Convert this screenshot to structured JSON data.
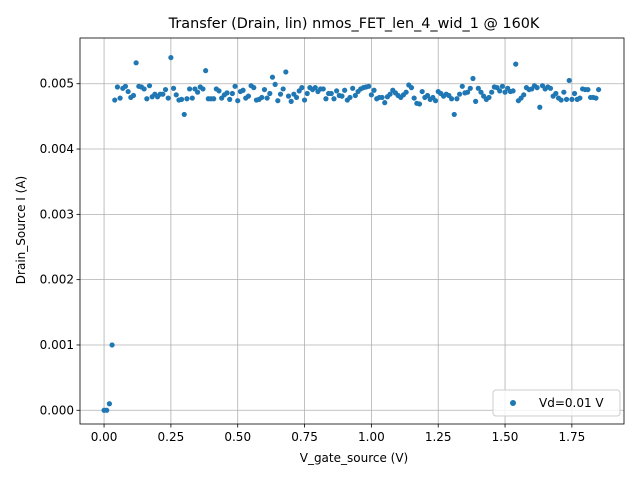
{
  "chart_data": {
    "type": "scatter",
    "title": "Transfer (Drain, lin) nmos_FET_len_4_wid_1 @ 160K",
    "xlabel": "V_gate_source (V)",
    "ylabel": "Drain_Source I (A)",
    "xlim": [
      -0.09,
      1.945
    ],
    "ylim": [
      -0.00021,
      0.0057
    ],
    "x_ticks": [
      0.0,
      0.25,
      0.5,
      0.75,
      1.0,
      1.25,
      1.5,
      1.75
    ],
    "x_tick_labels": [
      "0.00",
      "0.25",
      "0.50",
      "0.75",
      "1.00",
      "1.25",
      "1.50",
      "1.75"
    ],
    "y_ticks": [
      0.0,
      0.001,
      0.002,
      0.003,
      0.004,
      0.005
    ],
    "y_tick_labels": [
      "0.000",
      "0.001",
      "0.002",
      "0.003",
      "0.004",
      "0.005"
    ],
    "grid": true,
    "legend_position": "lower-right",
    "marker_color": "#1f77b4",
    "series": [
      {
        "name": "Vd=0.01 V",
        "x": [
          0.0,
          0.01,
          0.02,
          0.03,
          0.04,
          0.05,
          0.06,
          0.07,
          0.08,
          0.09,
          0.1,
          0.11,
          0.12,
          0.13,
          0.14,
          0.15,
          0.16,
          0.17,
          0.18,
          0.19,
          0.2,
          0.21,
          0.22,
          0.23,
          0.24,
          0.25,
          0.26,
          0.27,
          0.28,
          0.29,
          0.3,
          0.31,
          0.32,
          0.33,
          0.34,
          0.35,
          0.36,
          0.37,
          0.38,
          0.39,
          0.4,
          0.41,
          0.42,
          0.43,
          0.44,
          0.45,
          0.46,
          0.47,
          0.48,
          0.49,
          0.5,
          0.51,
          0.52,
          0.53,
          0.54,
          0.55,
          0.56,
          0.57,
          0.58,
          0.59,
          0.6,
          0.61,
          0.62,
          0.63,
          0.64,
          0.65,
          0.66,
          0.67,
          0.68,
          0.69,
          0.7,
          0.71,
          0.72,
          0.73,
          0.74,
          0.75,
          0.76,
          0.77,
          0.78,
          0.79,
          0.8,
          0.81,
          0.82,
          0.83,
          0.84,
          0.85,
          0.86,
          0.87,
          0.88,
          0.89,
          0.9,
          0.91,
          0.92,
          0.93,
          0.94,
          0.95,
          0.96,
          0.97,
          0.98,
          0.99,
          1.0,
          1.01,
          1.02,
          1.03,
          1.04,
          1.05,
          1.06,
          1.07,
          1.08,
          1.09,
          1.1,
          1.11,
          1.12,
          1.13,
          1.14,
          1.15,
          1.16,
          1.17,
          1.18,
          1.19,
          1.2,
          1.21,
          1.22,
          1.23,
          1.24,
          1.25,
          1.26,
          1.27,
          1.28,
          1.29,
          1.3,
          1.31,
          1.32,
          1.33,
          1.34,
          1.35,
          1.36,
          1.37,
          1.38,
          1.39,
          1.4,
          1.41,
          1.42,
          1.43,
          1.44,
          1.45,
          1.46,
          1.47,
          1.48,
          1.49,
          1.5,
          1.51,
          1.52,
          1.53,
          1.54,
          1.55,
          1.56,
          1.57,
          1.58,
          1.59,
          1.6,
          1.61,
          1.62,
          1.63,
          1.64,
          1.65,
          1.66,
          1.67,
          1.68,
          1.69,
          1.7,
          1.71,
          1.72,
          1.73,
          1.74,
          1.75,
          1.76,
          1.77,
          1.78,
          1.79,
          1.8,
          1.81,
          1.82,
          1.83,
          1.84,
          1.85
        ],
        "y": [
          0.0,
          0.0,
          0.0001,
          0.001,
          0.00475,
          0.00495,
          0.00478,
          0.00493,
          0.00496,
          0.00488,
          0.00479,
          0.00482,
          0.00532,
          0.00496,
          0.00495,
          0.00492,
          0.00477,
          0.00497,
          0.0048,
          0.00484,
          0.0048,
          0.00484,
          0.00484,
          0.00491,
          0.00478,
          0.0054,
          0.00493,
          0.00483,
          0.00475,
          0.00476,
          0.00453,
          0.00477,
          0.00492,
          0.00478,
          0.00492,
          0.00487,
          0.00495,
          0.00492,
          0.0052,
          0.00477,
          0.00477,
          0.00477,
          0.00492,
          0.00489,
          0.00478,
          0.00483,
          0.00486,
          0.00476,
          0.00485,
          0.00496,
          0.00474,
          0.00488,
          0.0049,
          0.00478,
          0.00481,
          0.00497,
          0.00494,
          0.00475,
          0.00476,
          0.00479,
          0.00491,
          0.00478,
          0.00485,
          0.0051,
          0.00499,
          0.00474,
          0.00484,
          0.00492,
          0.00518,
          0.00481,
          0.00473,
          0.00484,
          0.00479,
          0.00489,
          0.00494,
          0.00475,
          0.00485,
          0.00494,
          0.00491,
          0.00494,
          0.00488,
          0.00492,
          0.00492,
          0.00477,
          0.00485,
          0.00485,
          0.00477,
          0.00489,
          0.00482,
          0.00481,
          0.0049,
          0.00475,
          0.00479,
          0.00493,
          0.00482,
          0.00488,
          0.00492,
          0.00494,
          0.00495,
          0.00496,
          0.00483,
          0.0049,
          0.00477,
          0.00479,
          0.00479,
          0.00471,
          0.0048,
          0.00484,
          0.0049,
          0.00486,
          0.00482,
          0.00479,
          0.00483,
          0.00487,
          0.00498,
          0.00494,
          0.00478,
          0.0047,
          0.00469,
          0.00488,
          0.00479,
          0.00482,
          0.00476,
          0.00479,
          0.00474,
          0.00488,
          0.00485,
          0.00481,
          0.00484,
          0.00482,
          0.00477,
          0.00453,
          0.00477,
          0.00484,
          0.00496,
          0.00486,
          0.00487,
          0.00493,
          0.00508,
          0.00473,
          0.00493,
          0.00487,
          0.00481,
          0.00476,
          0.00479,
          0.00487,
          0.00495,
          0.00494,
          0.00489,
          0.00496,
          0.00487,
          0.00493,
          0.00488,
          0.00489,
          0.0053,
          0.00474,
          0.00478,
          0.00483,
          0.00494,
          0.00491,
          0.00492,
          0.00497,
          0.00494,
          0.00464,
          0.00497,
          0.00492,
          0.00495,
          0.00493,
          0.00481,
          0.00485,
          0.00478,
          0.00475,
          0.00487,
          0.00476,
          0.00505,
          0.00476,
          0.00485,
          0.00476,
          0.00478,
          0.00492,
          0.00491,
          0.00491,
          0.00479,
          0.00479,
          0.00478,
          0.00491
        ]
      }
    ]
  }
}
